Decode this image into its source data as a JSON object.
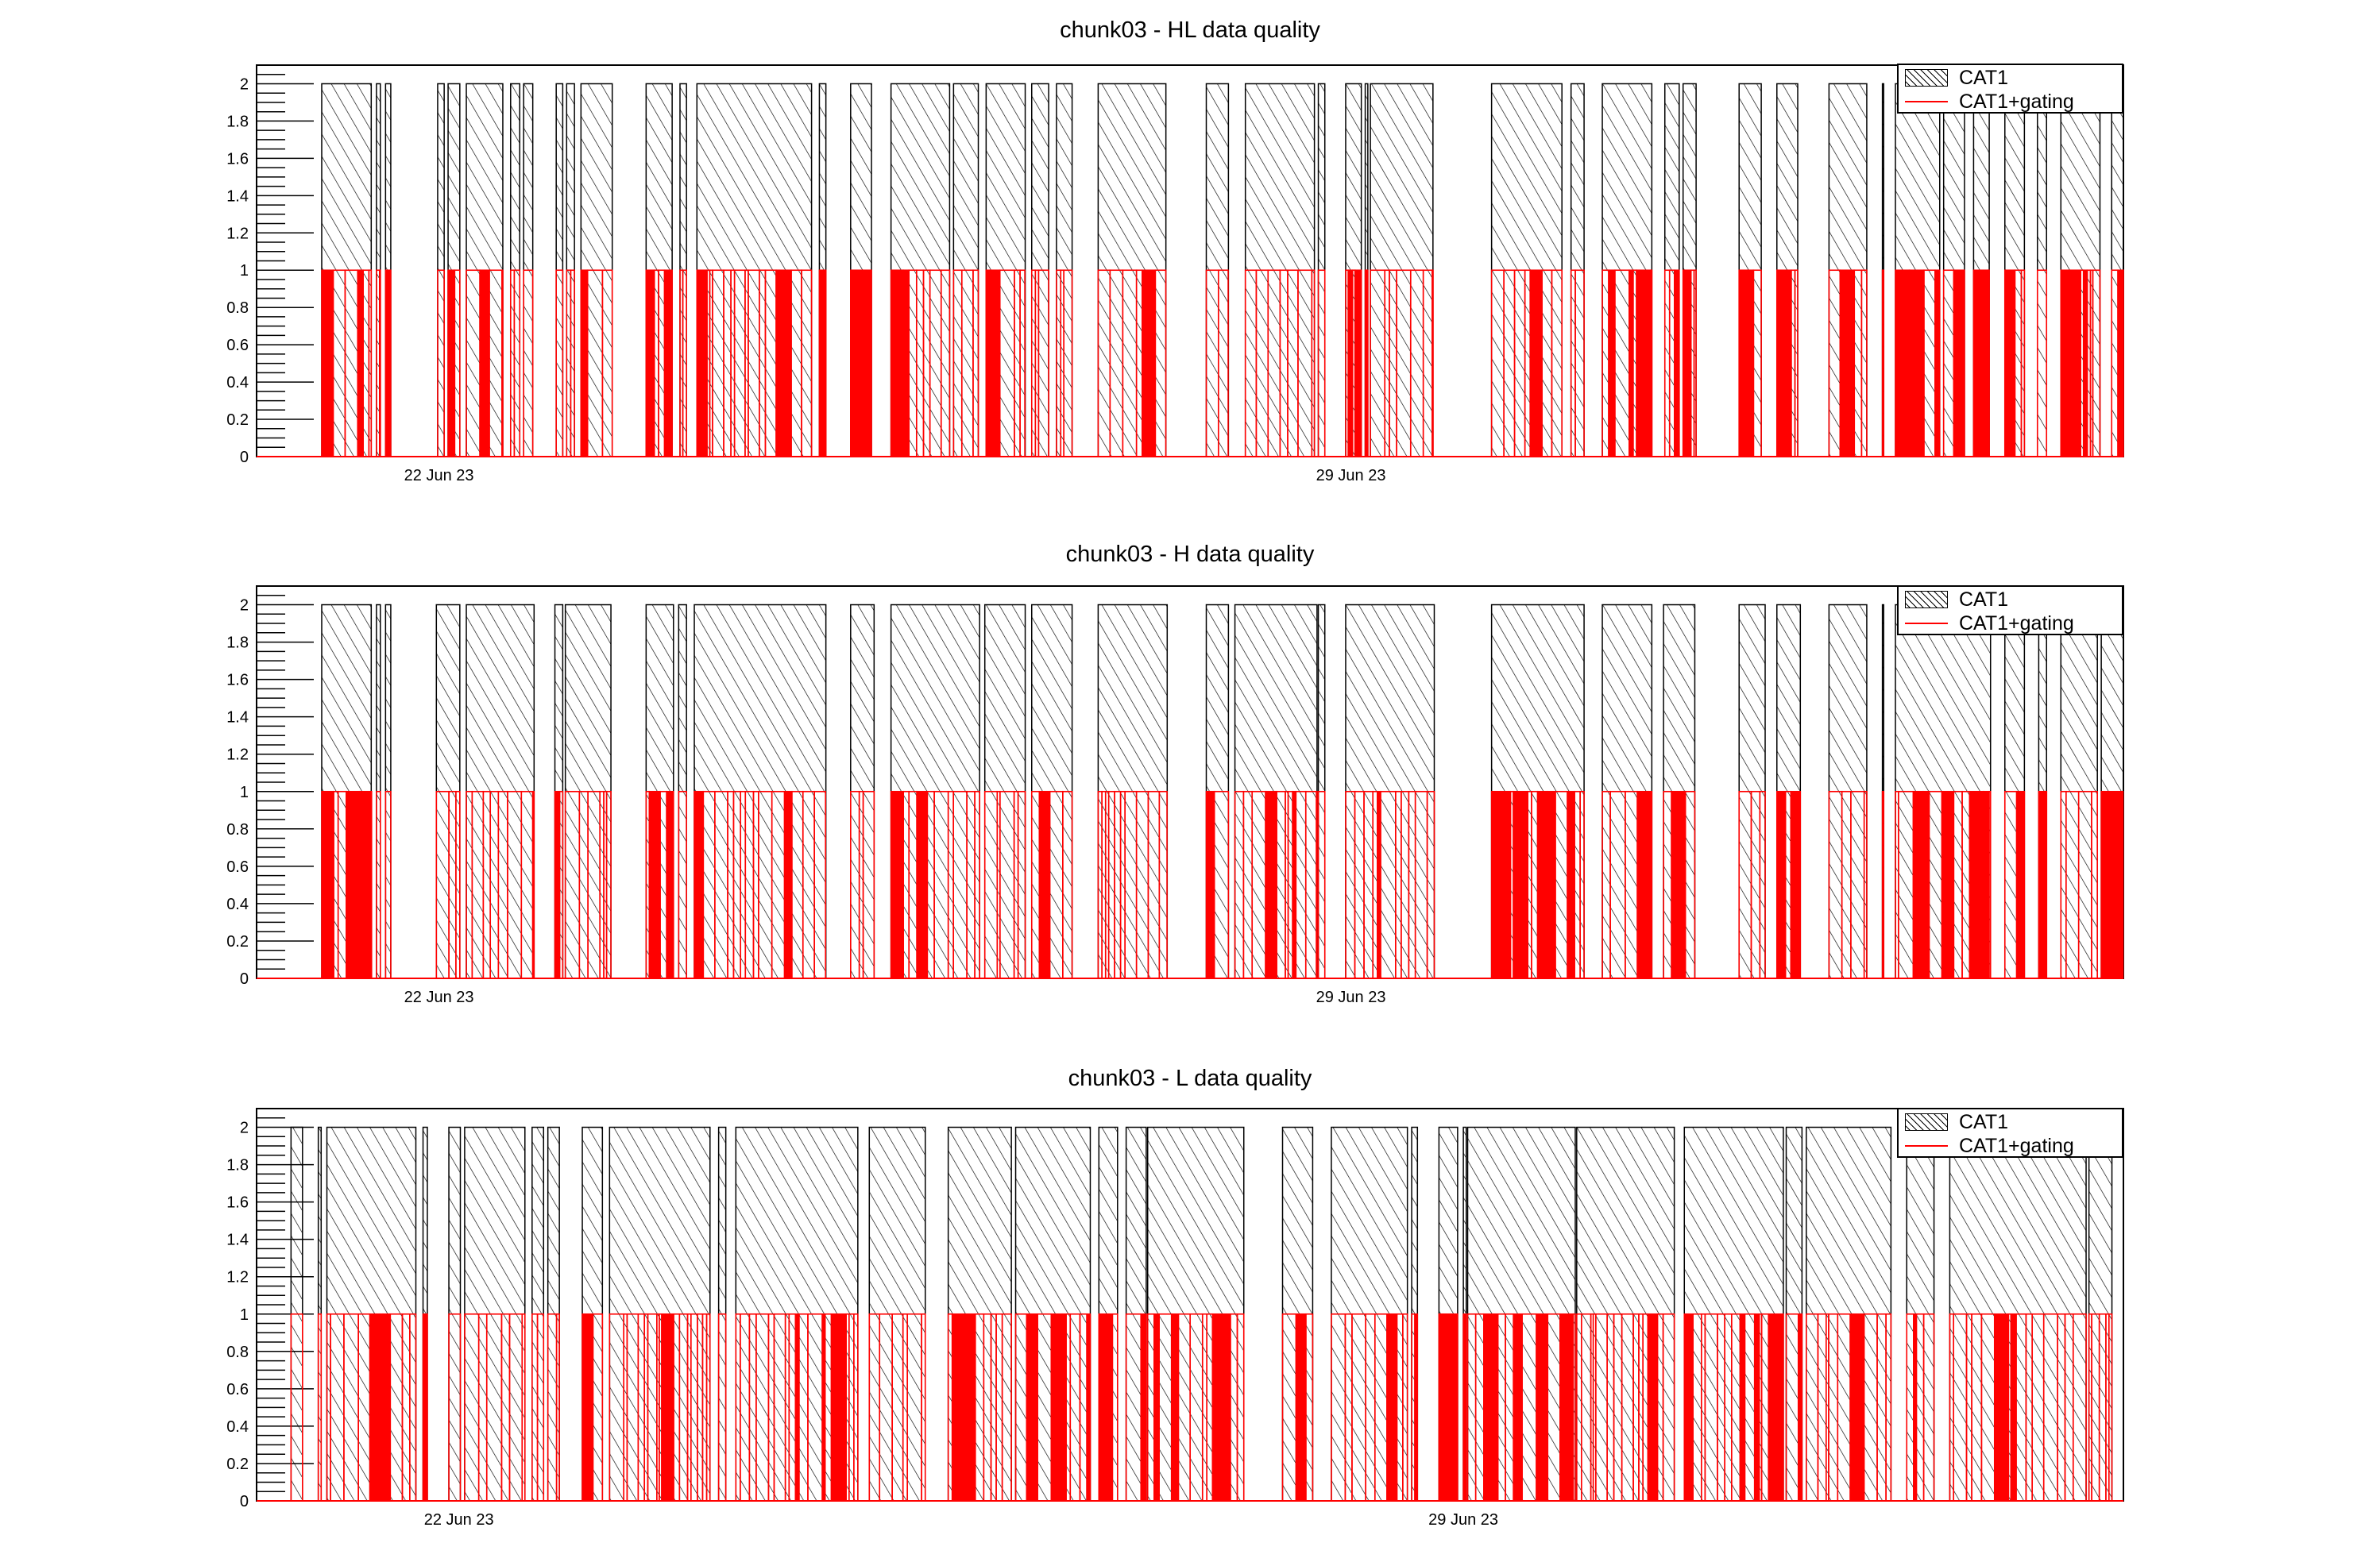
{
  "colors": {
    "cat1": "#000000",
    "gating": "#ff0000",
    "frame": "#000000"
  },
  "legend": {
    "cat1_label": "CAT1",
    "gating_label": "CAT1+gating",
    "cat1_icon": "hatched-box-icon",
    "gating_icon": "red-line-icon"
  },
  "chart_data": [
    {
      "type": "bar",
      "title": "chunk03 - HL data quality",
      "ylim": [
        0,
        2.1
      ],
      "yticks": [
        "0",
        "0.2",
        "0.4",
        "0.6",
        "0.8",
        "1",
        "1.2",
        "1.4",
        "1.6",
        "1.8",
        "2"
      ],
      "x_unit": "days since 22 Jun 23",
      "xlim": [
        -1.4,
        12.93
      ],
      "xticks": [
        {
          "value": 0,
          "label": "22 Jun 23"
        },
        {
          "value": 7,
          "label": "29 Jun 23"
        }
      ],
      "series": [
        {
          "name": "CAT1",
          "value": 2,
          "style": "hatched",
          "segments": [
            [
              -0.9,
              -0.52
            ],
            [
              -0.48,
              -0.45
            ],
            [
              -0.41,
              -0.37
            ],
            [
              -0.01,
              0.04
            ],
            [
              0.07,
              0.16
            ],
            [
              0.21,
              0.49
            ],
            [
              0.55,
              0.62
            ],
            [
              0.65,
              0.72
            ],
            [
              0.9,
              0.95
            ],
            [
              0.98,
              1.04
            ],
            [
              1.09,
              1.33
            ],
            [
              1.59,
              1.79
            ],
            [
              1.85,
              1.9
            ],
            [
              1.98,
              2.86
            ],
            [
              2.92,
              2.97
            ],
            [
              3.16,
              3.32
            ],
            [
              3.47,
              3.92
            ],
            [
              3.95,
              4.14
            ],
            [
              4.2,
              4.5
            ],
            [
              4.55,
              4.68
            ],
            [
              4.74,
              4.86
            ],
            [
              5.06,
              5.58
            ],
            [
              5.89,
              6.06
            ],
            [
              6.19,
              6.72
            ],
            [
              6.75,
              6.8
            ],
            [
              6.96,
              7.08
            ],
            [
              7.11,
              7.13
            ],
            [
              7.15,
              7.63
            ],
            [
              8.08,
              8.62
            ],
            [
              8.69,
              8.79
            ],
            [
              8.93,
              9.31
            ],
            [
              9.41,
              9.52
            ],
            [
              9.55,
              9.65
            ],
            [
              9.98,
              10.15
            ],
            [
              10.27,
              10.43
            ],
            [
              10.67,
              10.96
            ],
            [
              11.08,
              11.09
            ],
            [
              11.18,
              11.52
            ],
            [
              11.55,
              11.71
            ],
            [
              11.78,
              11.9
            ],
            [
              12.02,
              12.17
            ],
            [
              12.27,
              12.34
            ],
            [
              12.45,
              12.75
            ],
            [
              12.84,
              12.93
            ]
          ]
        },
        {
          "name": "CAT1+gating",
          "value": 1,
          "style": "red-outline"
        }
      ],
      "legend_position": "top-right"
    },
    {
      "type": "bar",
      "title": "chunk03 - H data quality",
      "ylim": [
        0,
        2.1
      ],
      "yticks": [
        "0",
        "0.2",
        "0.4",
        "0.6",
        "0.8",
        "1",
        "1.2",
        "1.4",
        "1.6",
        "1.8",
        "2"
      ],
      "x_unit": "days since 22 Jun 23",
      "xlim": [
        -1.4,
        12.93
      ],
      "xticks": [
        {
          "value": 0,
          "label": "22 Jun 23"
        },
        {
          "value": 7,
          "label": "29 Jun 23"
        }
      ],
      "series": [
        {
          "name": "CAT1",
          "value": 2,
          "style": "hatched",
          "segments": [
            [
              -0.9,
              -0.52
            ],
            [
              -0.48,
              -0.45
            ],
            [
              -0.41,
              -0.37
            ],
            [
              -0.02,
              0.16
            ],
            [
              0.21,
              0.73
            ],
            [
              0.89,
              0.95
            ],
            [
              0.97,
              1.32
            ],
            [
              1.59,
              1.8
            ],
            [
              1.84,
              1.9
            ],
            [
              1.96,
              2.97
            ],
            [
              3.16,
              3.34
            ],
            [
              3.47,
              4.15
            ],
            [
              4.19,
              4.5
            ],
            [
              4.55,
              4.86
            ],
            [
              5.06,
              5.59
            ],
            [
              5.89,
              6.06
            ],
            [
              6.11,
              6.74
            ],
            [
              6.75,
              6.8
            ],
            [
              6.96,
              7.64
            ],
            [
              8.08,
              8.79
            ],
            [
              8.93,
              9.31
            ],
            [
              9.4,
              9.64
            ],
            [
              9.98,
              10.18
            ],
            [
              10.27,
              10.45
            ],
            [
              10.67,
              10.96
            ],
            [
              11.08,
              11.09
            ],
            [
              11.18,
              11.91
            ],
            [
              12.02,
              12.17
            ],
            [
              12.28,
              12.34
            ],
            [
              12.45,
              12.73
            ],
            [
              12.76,
              12.93
            ]
          ]
        },
        {
          "name": "CAT1+gating",
          "value": 1,
          "style": "red-outline"
        }
      ],
      "legend_position": "top-right"
    },
    {
      "type": "bar",
      "title": "chunk03 - L data quality",
      "ylim": [
        0,
        2.1
      ],
      "yticks": [
        "0",
        "0.2",
        "0.4",
        "0.6",
        "0.8",
        "1",
        "1.2",
        "1.4",
        "1.6",
        "1.8",
        "2"
      ],
      "x_unit": "days since 22 Jun 23",
      "xlim": [
        -1.41,
        11.6
      ],
      "xticks": [
        {
          "value": 0,
          "label": "22 Jun 23"
        },
        {
          "value": 7,
          "label": "29 Jun 23"
        }
      ],
      "series": [
        {
          "name": "CAT1",
          "value": 2,
          "style": "hatched",
          "segments": [
            [
              -1.17,
              -1.09
            ],
            [
              -0.98,
              -0.96
            ],
            [
              -0.92,
              -0.3
            ],
            [
              -0.25,
              -0.22
            ],
            [
              -0.07,
              0.01
            ],
            [
              0.04,
              0.46
            ],
            [
              0.51,
              0.59
            ],
            [
              0.62,
              0.7
            ],
            [
              0.86,
              1.0
            ],
            [
              1.05,
              1.75
            ],
            [
              1.81,
              1.86
            ],
            [
              1.93,
              2.78
            ],
            [
              2.86,
              3.25
            ],
            [
              3.41,
              3.85
            ],
            [
              3.88,
              4.4
            ],
            [
              4.46,
              4.59
            ],
            [
              4.65,
              4.79
            ],
            [
              4.8,
              5.47
            ],
            [
              5.74,
              5.95
            ],
            [
              6.08,
              6.61
            ],
            [
              6.64,
              6.68
            ],
            [
              6.83,
              6.96
            ],
            [
              7.0,
              7.02
            ],
            [
              7.03,
              7.78
            ],
            [
              7.79,
              8.47
            ],
            [
              8.54,
              9.23
            ],
            [
              9.25,
              9.36
            ],
            [
              9.39,
              9.98
            ],
            [
              10.09,
              10.28
            ],
            [
              10.39,
              11.34
            ],
            [
              11.36,
              11.52
            ]
          ]
        },
        {
          "name": "CAT1+gating",
          "value": 1,
          "style": "red-outline"
        }
      ],
      "legend_position": "top-right"
    }
  ]
}
